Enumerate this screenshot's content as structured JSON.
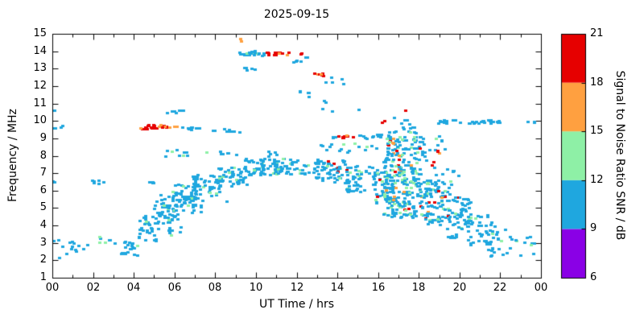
{
  "chart_data": {
    "type": "scatter",
    "title": "2025-09-15",
    "xlabel": "UT Time / hrs",
    "ylabel": "Frequency / MHz",
    "xlim": [
      0,
      24
    ],
    "ylim": [
      1,
      15
    ],
    "x_ticks": {
      "values": [
        0,
        2,
        4,
        6,
        8,
        10,
        12,
        14,
        16,
        18,
        20,
        22,
        24
      ],
      "labels": [
        "00",
        "02",
        "04",
        "06",
        "08",
        "10",
        "12",
        "14",
        "16",
        "18",
        "20",
        "22",
        "00"
      ],
      "minor_every": 1
    },
    "y_ticks": [
      1,
      2,
      3,
      4,
      5,
      6,
      7,
      8,
      9,
      10,
      11,
      12,
      13,
      14,
      15
    ],
    "grid": false,
    "colorbar": {
      "label": "Signal to Noise Ratio SNR / dB",
      "lim": [
        6,
        21
      ],
      "ticks": [
        6,
        9,
        12,
        15,
        18,
        21
      ],
      "bands": [
        {
          "range": [
            6,
            9
          ],
          "color": "#8a00e6",
          "name": "6-9 dB"
        },
        {
          "range": [
            9,
            12
          ],
          "color": "#1fa7df",
          "name": "9-12 dB"
        },
        {
          "range": [
            12,
            15
          ],
          "color": "#8ef0a6",
          "name": "12-15 dB"
        },
        {
          "range": [
            15,
            18
          ],
          "color": "#ffa040",
          "name": "15-18 dB"
        },
        {
          "range": [
            18,
            21
          ],
          "color": "#e60000",
          "name": "18-21 dB"
        }
      ]
    },
    "palette": {
      "purple": "#8a00e6",
      "blue": "#1fa7df",
      "green": "#8ef0a6",
      "orange": "#ffa040",
      "red": "#e60000"
    },
    "clusters": [
      {
        "t": [
          3.4,
          4.4
        ],
        "f": [
          2.2,
          3.3
        ],
        "n": 22,
        "c": {
          "blue": 92,
          "green": 8
        }
      },
      {
        "t": [
          4.2,
          5.2
        ],
        "f": [
          3.0,
          4.7
        ],
        "n": 30,
        "c": {
          "blue": 85,
          "green": 12,
          "orange": 3
        }
      },
      {
        "t": [
          5.0,
          6.1
        ],
        "f": [
          4.2,
          5.7
        ],
        "n": 42,
        "c": {
          "blue": 85,
          "green": 15
        }
      },
      {
        "t": [
          5.9,
          7.1
        ],
        "f": [
          5.0,
          6.3
        ],
        "n": 48,
        "c": {
          "blue": 85,
          "green": 13,
          "red": 2
        }
      },
      {
        "t": [
          6.9,
          8.3
        ],
        "f": [
          5.7,
          6.9
        ],
        "n": 50,
        "c": {
          "blue": 88,
          "green": 12
        }
      },
      {
        "t": [
          8.1,
          9.6
        ],
        "f": [
          6.2,
          7.3
        ],
        "n": 52,
        "c": {
          "blue": 90,
          "green": 10
        }
      },
      {
        "t": [
          9.4,
          11.1
        ],
        "f": [
          6.8,
          7.8
        ],
        "n": 58,
        "c": {
          "blue": 88,
          "green": 10,
          "orange": 2
        }
      },
      {
        "t": [
          10.9,
          13.1
        ],
        "f": [
          6.9,
          7.8
        ],
        "n": 60,
        "c": {
          "blue": 90,
          "green": 10
        }
      },
      {
        "t": [
          12.9,
          14.6
        ],
        "f": [
          6.4,
          7.7
        ],
        "n": 55,
        "c": {
          "blue": 85,
          "green": 12,
          "red": 3
        }
      },
      {
        "t": [
          14.4,
          15.9
        ],
        "f": [
          5.9,
          7.4
        ],
        "n": 50,
        "c": {
          "blue": 85,
          "green": 12,
          "orange": 3
        }
      },
      {
        "t": [
          6.0,
          9.0
        ],
        "f": [
          4.6,
          5.9
        ],
        "n": 20,
        "c": {
          "blue": 90,
          "green": 10
        }
      },
      {
        "t": [
          5.2,
          6.4
        ],
        "f": [
          3.4,
          4.6
        ],
        "n": 16,
        "c": {
          "blue": 90,
          "green": 10
        }
      },
      {
        "t": [
          15.8,
          16.8
        ],
        "f": [
          5.2,
          7.2
        ],
        "n": 45,
        "c": {
          "blue": 80,
          "green": 15,
          "red": 5
        }
      },
      {
        "t": [
          16.3,
          18.4
        ],
        "f": [
          6.6,
          9.4
        ],
        "n": 150,
        "c": {
          "blue": 72,
          "green": 18,
          "orange": 5,
          "red": 5
        }
      },
      {
        "t": [
          16.3,
          18.5
        ],
        "f": [
          4.4,
          6.6
        ],
        "n": 150,
        "c": {
          "blue": 72,
          "green": 16,
          "orange": 6,
          "red": 6
        }
      },
      {
        "t": [
          18.3,
          19.6
        ],
        "f": [
          4.0,
          6.6
        ],
        "n": 85,
        "c": {
          "blue": 80,
          "green": 14,
          "red": 4,
          "orange": 2
        }
      },
      {
        "t": [
          19.4,
          20.6
        ],
        "f": [
          3.2,
          5.6
        ],
        "n": 65,
        "c": {
          "blue": 82,
          "green": 14,
          "red": 2,
          "orange": 2
        }
      },
      {
        "t": [
          20.4,
          21.6
        ],
        "f": [
          2.8,
          4.6
        ],
        "n": 40,
        "c": {
          "blue": 85,
          "green": 15
        }
      },
      {
        "t": [
          21.4,
          22.6
        ],
        "f": [
          2.2,
          3.9
        ],
        "n": 26,
        "c": {
          "blue": 90,
          "green": 10
        }
      },
      {
        "t": [
          22.6,
          23.7
        ],
        "f": [
          2.2,
          3.3
        ],
        "n": 10,
        "c": {
          "blue": 90,
          "green": 10
        }
      },
      {
        "t": [
          18.6,
          20.2
        ],
        "f": [
          6.8,
          7.6
        ],
        "n": 8,
        "c": {
          "blue": 100
        }
      },
      {
        "t": [
          18.5,
          19.4
        ],
        "f": [
          7.9,
          9.1
        ],
        "n": 8,
        "c": {
          "blue": 90,
          "green": 10
        }
      },
      {
        "t": [
          16.6,
          18.2
        ],
        "f": [
          9.4,
          10.3
        ],
        "n": 10,
        "c": {
          "blue": 85,
          "red": 15
        }
      },
      {
        "t": [
          4.3,
          6.35
        ],
        "f": [
          9.5,
          9.72
        ],
        "n": 24,
        "c": {
          "red": 80,
          "orange": 20
        }
      },
      {
        "t": [
          6.4,
          7.7
        ],
        "f": [
          9.45,
          9.6
        ],
        "n": 9,
        "c": {
          "blue": 100
        }
      },
      {
        "t": [
          7.8,
          9.3
        ],
        "f": [
          9.3,
          9.5
        ],
        "n": 10,
        "c": {
          "blue": 90,
          "green": 10
        }
      },
      {
        "t": [
          9.15,
          10.55
        ],
        "f": [
          13.72,
          13.97
        ],
        "n": 26,
        "c": {
          "blue": 92,
          "green": 8
        }
      },
      {
        "t": [
          10.55,
          11.65
        ],
        "f": [
          13.72,
          13.92
        ],
        "n": 16,
        "c": {
          "red": 85,
          "orange": 15
        }
      },
      {
        "t": [
          9.1,
          9.3
        ],
        "f": [
          14.5,
          14.7
        ],
        "n": 2,
        "c": {
          "orange": 100
        }
      },
      {
        "t": [
          11.85,
          12.25
        ],
        "f": [
          13.25,
          13.45
        ],
        "n": 4,
        "c": {
          "blue": 100
        }
      },
      {
        "t": [
          12.1,
          12.25
        ],
        "f": [
          13.8,
          13.95
        ],
        "n": 2,
        "c": {
          "red": 100
        }
      },
      {
        "t": [
          12.45,
          12.7
        ],
        "f": [
          13.55,
          13.7
        ],
        "n": 2,
        "c": {
          "blue": 100
        }
      },
      {
        "t": [
          9.3,
          10.0
        ],
        "f": [
          12.85,
          13.1
        ],
        "n": 5,
        "c": {
          "blue": 100
        }
      },
      {
        "t": [
          12.85,
          13.35
        ],
        "f": [
          12.5,
          12.72
        ],
        "n": 7,
        "c": {
          "red": 70,
          "orange": 30
        }
      },
      {
        "t": [
          13.35,
          14.4
        ],
        "f": [
          12.05,
          12.5
        ],
        "n": 6,
        "c": {
          "blue": 100
        }
      },
      {
        "t": [
          12.15,
          12.65
        ],
        "f": [
          11.35,
          11.75
        ],
        "n": 5,
        "c": {
          "blue": 100
        }
      },
      {
        "t": [
          13.35,
          13.5
        ],
        "f": [
          11.0,
          11.2
        ],
        "n": 2,
        "c": {
          "blue": 100
        }
      },
      {
        "t": [
          5.55,
          6.55
        ],
        "f": [
          10.4,
          10.65
        ],
        "n": 7,
        "c": {
          "blue": 100
        }
      },
      {
        "t": [
          18.8,
          22.35
        ],
        "f": [
          9.82,
          10.02
        ],
        "n": 34,
        "c": {
          "blue": 100
        }
      },
      {
        "t": [
          23.3,
          23.75
        ],
        "f": [
          9.82,
          10.0
        ],
        "n": 3,
        "c": {
          "blue": 100
        }
      },
      {
        "t": [
          16.2,
          16.35
        ],
        "f": [
          9.85,
          10.0
        ],
        "n": 2,
        "c": {
          "red": 100
        }
      },
      {
        "t": [
          14.05,
          14.85
        ],
        "f": [
          9.0,
          9.2
        ],
        "n": 9,
        "c": {
          "red": 80,
          "orange": 20
        }
      },
      {
        "t": [
          13.75,
          14.05
        ],
        "f": [
          9.0,
          9.2
        ],
        "n": 3,
        "c": {
          "blue": 100
        }
      },
      {
        "t": [
          14.85,
          16.35
        ],
        "f": [
          8.95,
          9.2
        ],
        "n": 12,
        "c": {
          "blue": 90,
          "green": 10
        }
      },
      {
        "t": [
          5.5,
          9.2
        ],
        "f": [
          7.9,
          8.3
        ],
        "n": 16,
        "c": {
          "blue": 90,
          "green": 10
        }
      },
      {
        "t": [
          10.4,
          11.2
        ],
        "f": [
          7.95,
          8.25
        ],
        "n": 5,
        "c": {
          "blue": 100
        }
      },
      {
        "t": [
          13.0,
          16.0
        ],
        "f": [
          8.1,
          8.7
        ],
        "n": 16,
        "c": {
          "blue": 85,
          "green": 15
        }
      },
      {
        "t": [
          18.9,
          19.2
        ],
        "f": [
          8.0,
          8.3
        ],
        "n": 3,
        "c": {
          "red": 70,
          "orange": 30
        }
      },
      {
        "t": [
          18.6,
          18.8
        ],
        "f": [
          7.4,
          7.6
        ],
        "n": 2,
        "c": {
          "red": 100
        }
      },
      {
        "t": [
          1.95,
          2.65
        ],
        "f": [
          6.35,
          6.65
        ],
        "n": 6,
        "c": {
          "blue": 60,
          "red": 25,
          "green": 15
        }
      },
      {
        "t": [
          4.35,
          5.0
        ],
        "f": [
          6.4,
          6.6
        ],
        "n": 5,
        "c": {
          "blue": 100
        }
      },
      {
        "t": [
          0.0,
          0.6
        ],
        "f": [
          9.5,
          9.7
        ],
        "n": 4,
        "c": {
          "blue": 100
        }
      },
      {
        "t": [
          0.0,
          0.25
        ],
        "f": [
          6.4,
          6.6
        ],
        "n": 2,
        "c": {
          "blue": 100
        }
      },
      {
        "t": [
          0.0,
          1.3
        ],
        "f": [
          2.75,
          3.25
        ],
        "n": 8,
        "c": {
          "blue": 90,
          "green": 10
        }
      },
      {
        "t": [
          0.3,
          1.9
        ],
        "f": [
          1.95,
          2.65
        ],
        "n": 6,
        "c": {
          "blue": 100
        }
      },
      {
        "t": [
          1.5,
          2.6
        ],
        "f": [
          2.85,
          3.35
        ],
        "n": 5,
        "c": {
          "blue": 85,
          "green": 15
        }
      },
      {
        "t": [
          2.8,
          3.1
        ],
        "f": [
          2.9,
          3.15
        ],
        "n": 3,
        "c": {
          "blue": 100
        }
      },
      {
        "t": [
          0.05,
          0.2
        ],
        "f": [
          10.5,
          10.65
        ],
        "n": 1,
        "c": {
          "blue": 100
        }
      },
      {
        "t": [
          13.2,
          15.4
        ],
        "f": [
          10.2,
          10.7
        ],
        "n": 3,
        "c": {
          "blue": 100
        }
      },
      {
        "t": [
          17.3,
          17.45
        ],
        "f": [
          10.45,
          10.6
        ],
        "n": 1,
        "c": {
          "red": 100
        }
      }
    ]
  }
}
